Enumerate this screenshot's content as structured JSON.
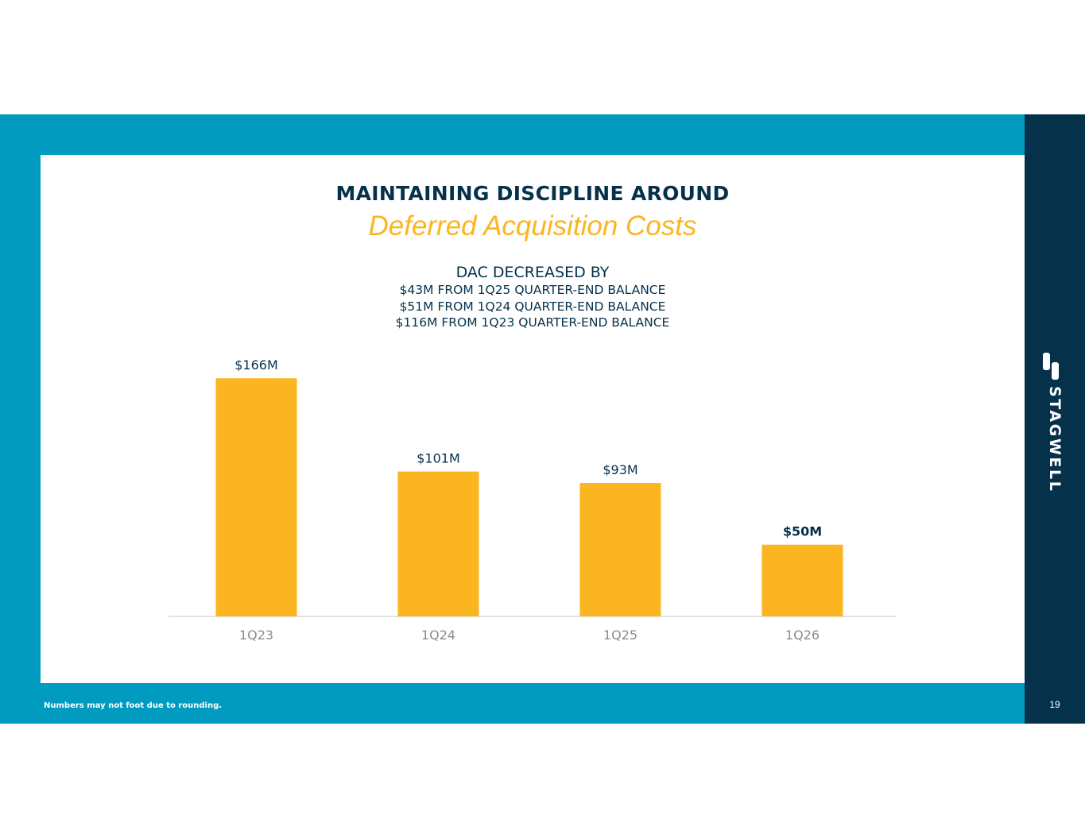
{
  "slide": {
    "title": "MAINTAINING DISCIPLINE AROUND",
    "subtitle": "Deferred Acquisition Costs",
    "callout": {
      "heading": "DAC DECREASED BY",
      "lines": [
        "$43M FROM 1Q25 QUARTER-END BALANCE",
        "$51M FROM 1Q24 QUARTER-END BALANCE",
        "$116M FROM 1Q23 QUARTER-END BALANCE"
      ]
    },
    "footnote": "Numbers may not foot due to rounding.",
    "page_number": "19",
    "logo_text": "STAGWELL",
    "colors": {
      "accent_blue": "#009bbf",
      "navy": "#05314a",
      "bar_gold": "#fbb520"
    }
  },
  "chart_data": {
    "type": "bar",
    "categories": [
      "1Q23",
      "1Q24",
      "1Q25",
      "1Q26"
    ],
    "values": [
      166,
      101,
      93,
      50
    ],
    "data_labels": [
      "$166M",
      "$101M",
      "$93M",
      "$50M"
    ],
    "highlight_index": 3,
    "ylim": [
      0,
      170
    ],
    "grid": false,
    "legend": "none"
  }
}
